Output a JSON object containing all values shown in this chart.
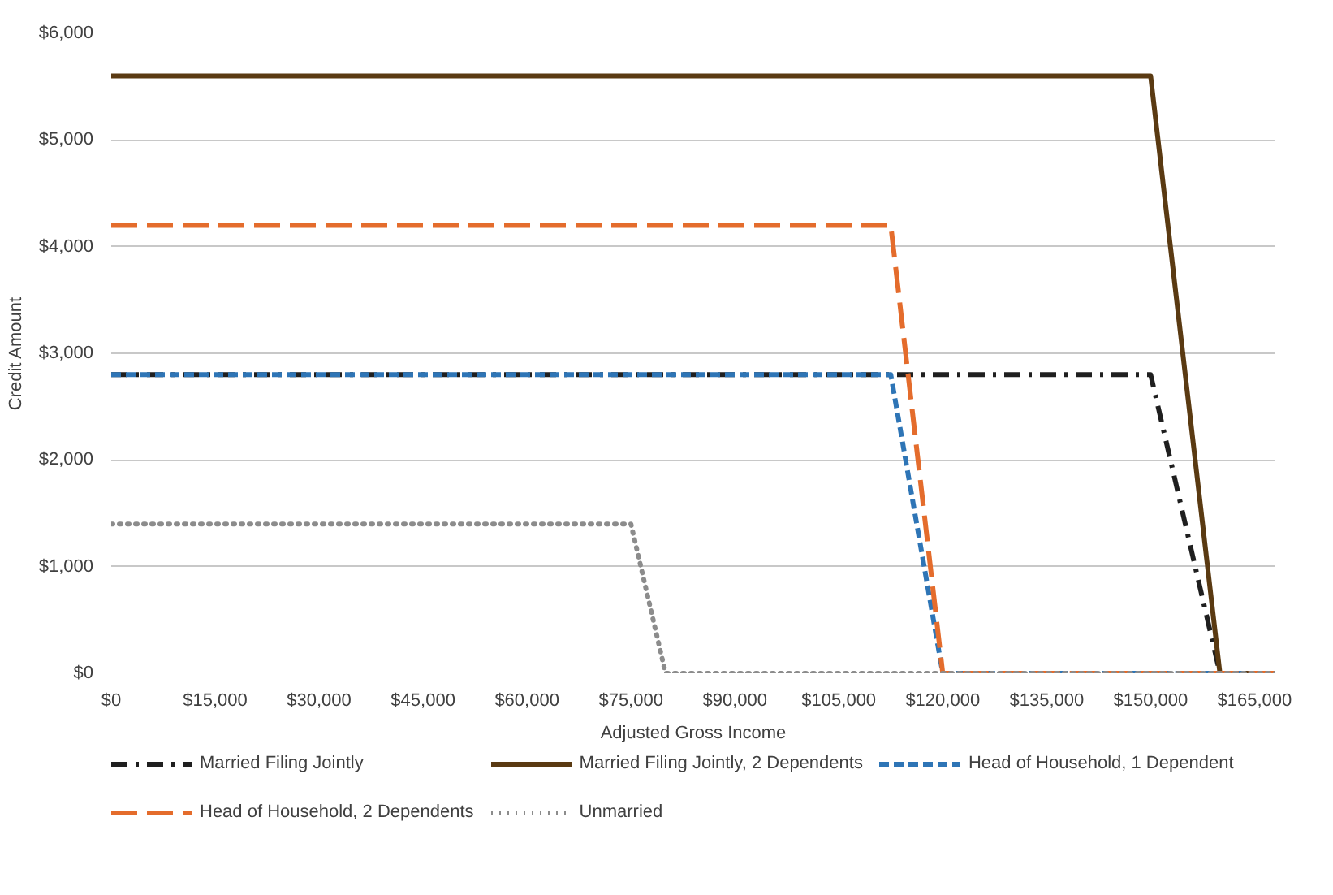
{
  "chart_data": {
    "type": "line",
    "xlabel": "Adjusted Gross Income",
    "ylabel": "Credit Amount",
    "xlim": [
      0,
      168000
    ],
    "ylim": [
      0,
      6000
    ],
    "xticks": [
      {
        "value": 0,
        "label": "$0"
      },
      {
        "value": 15000,
        "label": "$15,000"
      },
      {
        "value": 30000,
        "label": "$30,000"
      },
      {
        "value": 45000,
        "label": "$45,000"
      },
      {
        "value": 60000,
        "label": "$60,000"
      },
      {
        "value": 75000,
        "label": "$75,000"
      },
      {
        "value": 90000,
        "label": "$90,000"
      },
      {
        "value": 105000,
        "label": "$105,000"
      },
      {
        "value": 120000,
        "label": "$120,000"
      },
      {
        "value": 135000,
        "label": "$135,000"
      },
      {
        "value": 150000,
        "label": "$150,000"
      },
      {
        "value": 165000,
        "label": "$165,000"
      }
    ],
    "yticks": [
      {
        "value": 0,
        "label": "$0"
      },
      {
        "value": 1000,
        "label": "$1,000"
      },
      {
        "value": 2000,
        "label": "$2,000"
      },
      {
        "value": 3000,
        "label": "$3,000"
      },
      {
        "value": 4000,
        "label": "$4,000"
      },
      {
        "value": 5000,
        "label": "$5,000"
      },
      {
        "value": 6000,
        "label": "$6,000"
      }
    ],
    "grid": "y",
    "legend": "bottom",
    "series": [
      {
        "name": "Married Filing Jointly",
        "color": "#1f1f1f",
        "line_style": "dashdot",
        "x": [
          0,
          150000,
          160000,
          168000
        ],
        "values": [
          2800,
          2800,
          0,
          0
        ]
      },
      {
        "name": "Married Filing Jointly, 2 Dependents",
        "color": "#5a3a12",
        "line_style": "solid",
        "x": [
          0,
          150000,
          160000,
          168000
        ],
        "values": [
          5600,
          5600,
          0,
          0
        ]
      },
      {
        "name": "Head of Household, 1 Dependent",
        "color": "#2e75b6",
        "line_style": "dashed",
        "x": [
          0,
          112500,
          120000,
          168000
        ],
        "values": [
          2800,
          2800,
          0,
          0
        ]
      },
      {
        "name": "Head of Household, 2 Dependents",
        "color": "#e46c2c",
        "line_style": "longdash",
        "x": [
          0,
          112500,
          120000,
          168000
        ],
        "values": [
          4200,
          4200,
          0,
          0
        ]
      },
      {
        "name": "Unmarried",
        "color": "#8c8c8c",
        "line_style": "dotted",
        "x": [
          0,
          75000,
          80000,
          168000
        ],
        "values": [
          1400,
          1400,
          0,
          0
        ]
      }
    ]
  }
}
